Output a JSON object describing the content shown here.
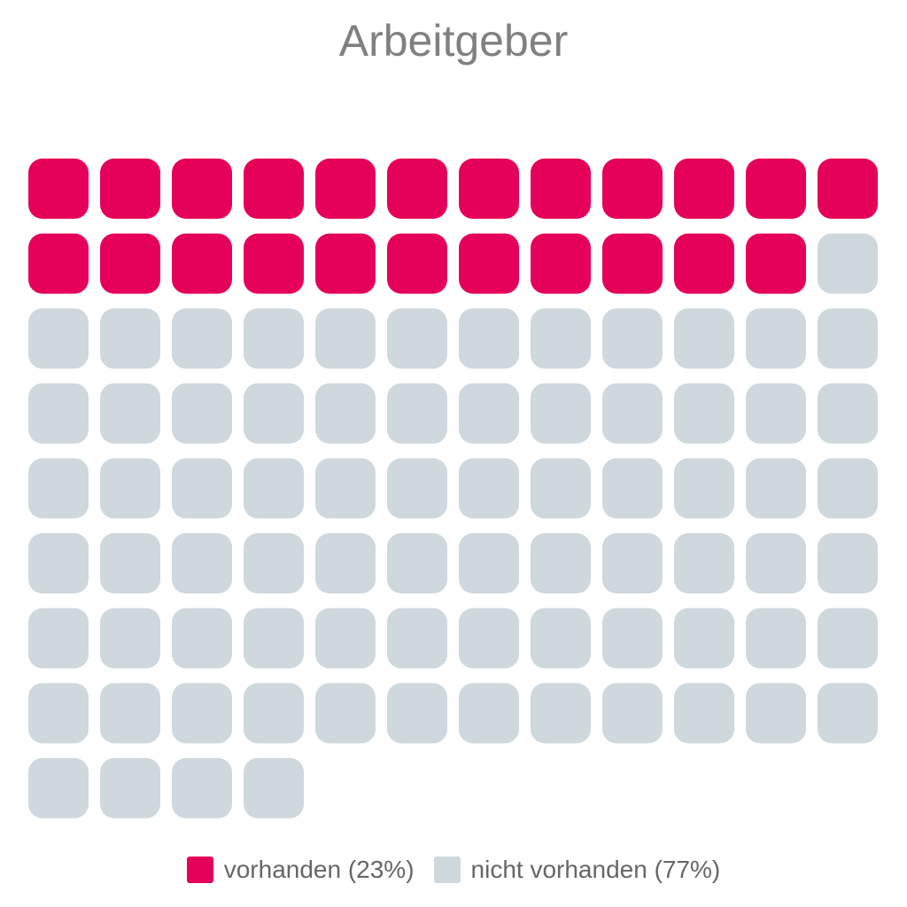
{
  "chart_data": {
    "type": "waffle",
    "title": "Arbeitgeber",
    "columns": 12,
    "total_units": 100,
    "series": [
      {
        "name": "vorhanden",
        "legend_label": "vorhanden (23%)",
        "units": 23,
        "percent": 23,
        "color": "#e5005a"
      },
      {
        "name": "nicht vorhanden",
        "legend_label": "nicht vorhanden (77%)",
        "units": 77,
        "percent": 77,
        "color": "#cfd8dc"
      }
    ],
    "legend_placement": "bottom-center",
    "grid": false
  }
}
